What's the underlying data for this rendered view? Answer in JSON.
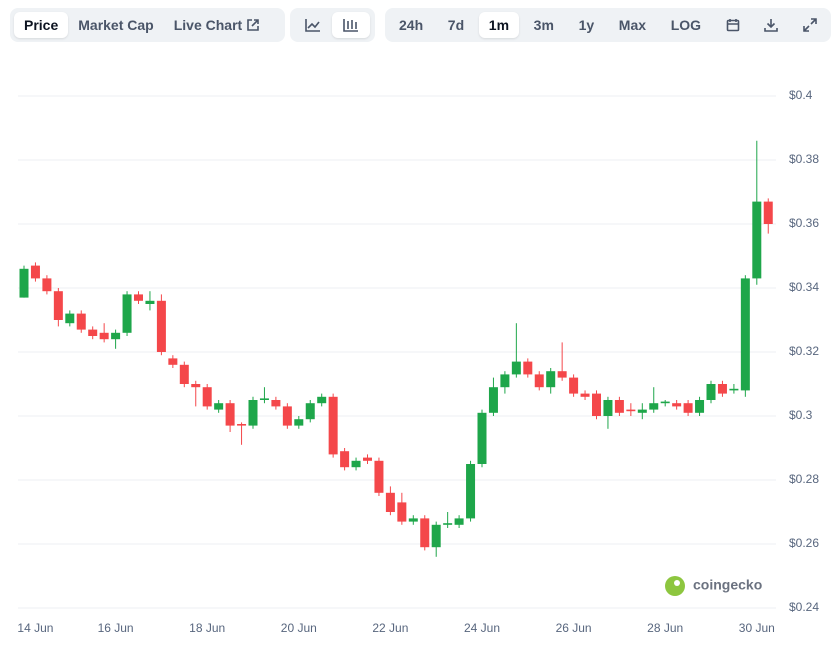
{
  "toolbar": {
    "tabs": [
      "Price",
      "Market Cap",
      "Live Chart"
    ],
    "ranges": [
      "24h",
      "7d",
      "1m",
      "3m",
      "1y",
      "Max"
    ],
    "scale": "LOG"
  },
  "watermark": "coingecko",
  "chart_data": {
    "type": "candlestick",
    "categories": [
      null,
      "14 Jun",
      null,
      null,
      null,
      null,
      null,
      null,
      "16 Jun",
      null,
      null,
      null,
      null,
      null,
      null,
      null,
      "18 Jun",
      null,
      null,
      null,
      null,
      null,
      null,
      null,
      "20 Jun",
      null,
      null,
      null,
      null,
      null,
      null,
      null,
      "22 Jun",
      null,
      null,
      null,
      null,
      null,
      null,
      null,
      "24 Jun",
      null,
      null,
      null,
      null,
      null,
      null,
      null,
      "26 Jun",
      null,
      null,
      null,
      null,
      null,
      null,
      null,
      "28 Jun",
      null,
      null,
      null,
      null,
      null,
      null,
      null,
      "30 Jun",
      null
    ],
    "open": [
      0.337,
      0.347,
      0.343,
      0.339,
      0.329,
      0.332,
      0.327,
      0.326,
      0.324,
      0.326,
      0.338,
      0.335,
      0.336,
      0.318,
      0.316,
      0.31,
      0.309,
      0.302,
      0.304,
      0.2975,
      0.297,
      0.305,
      0.305,
      0.303,
      0.297,
      0.299,
      0.304,
      0.306,
      0.289,
      0.284,
      0.287,
      0.286,
      0.276,
      0.273,
      0.267,
      0.268,
      0.259,
      0.266,
      0.266,
      0.268,
      0.285,
      0.301,
      0.309,
      0.313,
      0.317,
      0.313,
      0.309,
      0.314,
      0.312,
      0.307,
      0.307,
      0.3,
      0.305,
      0.302,
      0.301,
      0.302,
      0.304,
      0.304,
      0.304,
      0.301,
      0.305,
      0.31,
      0.308,
      0.308,
      0.343,
      0.367
    ],
    "close": [
      0.346,
      0.343,
      0.339,
      0.33,
      0.332,
      0.327,
      0.325,
      0.324,
      0.326,
      0.338,
      0.336,
      0.336,
      0.32,
      0.316,
      0.31,
      0.309,
      0.303,
      0.304,
      0.297,
      0.297,
      0.305,
      0.3055,
      0.303,
      0.297,
      0.299,
      0.304,
      0.306,
      0.288,
      0.284,
      0.286,
      0.286,
      0.276,
      0.27,
      0.267,
      0.268,
      0.259,
      0.266,
      0.2665,
      0.268,
      0.285,
      0.301,
      0.309,
      0.313,
      0.317,
      0.313,
      0.309,
      0.314,
      0.312,
      0.307,
      0.306,
      0.3,
      0.305,
      0.301,
      0.3015,
      0.302,
      0.304,
      0.3045,
      0.303,
      0.301,
      0.305,
      0.31,
      0.307,
      0.3085,
      0.343,
      0.367,
      0.36
    ],
    "high": [
      0.347,
      0.348,
      0.344,
      0.34,
      0.333,
      0.333,
      0.328,
      0.329,
      0.327,
      0.339,
      0.339,
      0.339,
      0.338,
      0.319,
      0.317,
      0.311,
      0.31,
      0.305,
      0.305,
      0.298,
      0.306,
      0.309,
      0.306,
      0.304,
      0.3,
      0.305,
      0.307,
      0.307,
      0.29,
      0.287,
      0.288,
      0.287,
      0.278,
      0.276,
      0.269,
      0.269,
      0.267,
      0.27,
      0.269,
      0.286,
      0.302,
      0.312,
      0.314,
      0.329,
      0.318,
      0.314,
      0.315,
      0.323,
      0.313,
      0.308,
      0.308,
      0.306,
      0.306,
      0.304,
      0.304,
      0.309,
      0.305,
      0.305,
      0.305,
      0.306,
      0.311,
      0.311,
      0.31,
      0.344,
      0.386,
      0.368
    ],
    "low": [
      0.337,
      0.342,
      0.338,
      0.328,
      0.328,
      0.326,
      0.324,
      0.323,
      0.321,
      0.325,
      0.335,
      0.333,
      0.319,
      0.315,
      0.309,
      0.303,
      0.302,
      0.301,
      0.295,
      0.291,
      0.296,
      0.304,
      0.302,
      0.296,
      0.296,
      0.298,
      0.303,
      0.287,
      0.283,
      0.283,
      0.285,
      0.275,
      0.269,
      0.266,
      0.266,
      0.258,
      0.256,
      0.265,
      0.265,
      0.267,
      0.284,
      0.3,
      0.307,
      0.312,
      0.312,
      0.308,
      0.307,
      0.311,
      0.306,
      0.305,
      0.299,
      0.296,
      0.3,
      0.3,
      0.299,
      0.301,
      0.303,
      0.302,
      0.3,
      0.3,
      0.304,
      0.306,
      0.307,
      0.306,
      0.341,
      0.357
    ],
    "up_color": "#1ea64a",
    "down_color": "#f4474a",
    "ylim": [
      0.24,
      0.4
    ],
    "yticks": [
      {
        "value": 0.24,
        "label": "$0.24"
      },
      {
        "value": 0.26,
        "label": "$0.26"
      },
      {
        "value": 0.28,
        "label": "$0.28"
      },
      {
        "value": 0.3,
        "label": "$0.3"
      },
      {
        "value": 0.32,
        "label": "$0.32"
      },
      {
        "value": 0.34,
        "label": "$0.34"
      },
      {
        "value": 0.36,
        "label": "$0.36"
      },
      {
        "value": 0.38,
        "label": "$0.38"
      },
      {
        "value": 0.4,
        "label": "$0.4"
      }
    ],
    "grid": true
  }
}
